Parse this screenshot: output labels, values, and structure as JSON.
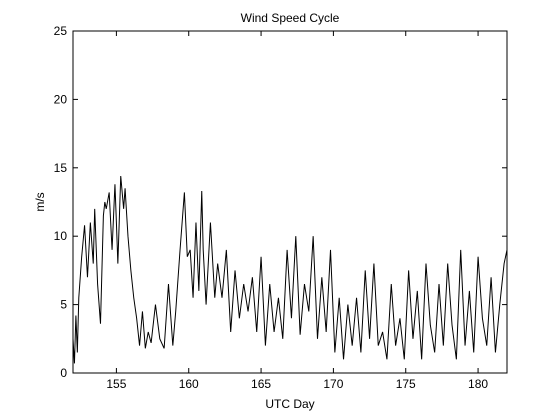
{
  "chart_data": {
    "type": "line",
    "title": "Wind Speed Cycle",
    "xlabel": "UTC Day",
    "ylabel": "m/s",
    "xlim": [
      152,
      182
    ],
    "ylim": [
      0,
      25
    ],
    "x_ticks": [
      155,
      160,
      165,
      170,
      175,
      180
    ],
    "y_ticks": [
      0,
      5,
      10,
      15,
      20,
      25
    ],
    "grid": false,
    "line_color": "#000000",
    "series": [
      {
        "x": [
          152.0,
          152.1,
          152.2,
          152.3,
          152.4,
          152.6,
          152.8,
          153.0,
          153.2,
          153.4,
          153.5,
          153.7,
          153.9,
          154.1,
          154.2,
          154.3,
          154.5,
          154.7,
          154.9,
          155.0,
          155.1,
          155.3,
          155.5,
          155.6,
          155.8,
          156.0,
          156.2,
          156.4,
          156.6,
          156.8,
          157.0,
          157.2,
          157.4,
          157.7,
          158.0,
          158.3,
          158.6,
          158.9,
          159.1,
          159.4,
          159.7,
          159.9,
          160.1,
          160.3,
          160.5,
          160.7,
          160.9,
          161.0,
          161.2,
          161.5,
          161.8,
          162.0,
          162.3,
          162.6,
          162.9,
          163.2,
          163.5,
          163.8,
          164.1,
          164.4,
          164.7,
          165.0,
          165.3,
          165.6,
          165.9,
          166.2,
          166.5,
          166.8,
          167.1,
          167.4,
          167.7,
          168.0,
          168.3,
          168.6,
          168.9,
          169.2,
          169.5,
          169.8,
          170.1,
          170.4,
          170.7,
          171.0,
          171.3,
          171.6,
          171.9,
          172.2,
          172.5,
          172.8,
          173.1,
          173.4,
          173.7,
          174.0,
          174.3,
          174.6,
          174.9,
          175.2,
          175.5,
          175.8,
          176.1,
          176.4,
          176.7,
          177.0,
          177.3,
          177.6,
          177.9,
          178.2,
          178.5,
          178.8,
          179.1,
          179.4,
          179.7,
          180.0,
          180.3,
          180.6,
          180.9,
          181.2,
          181.5,
          181.8,
          182.0
        ],
        "y": [
          2.5,
          0.7,
          4.2,
          1.5,
          5.5,
          8.5,
          10.8,
          7.0,
          11.0,
          8.0,
          12.0,
          6.5,
          3.6,
          11.5,
          12.5,
          12.0,
          13.2,
          9.0,
          13.8,
          11.0,
          8.0,
          14.4,
          12.0,
          13.5,
          10.0,
          7.5,
          5.5,
          4.0,
          2.0,
          4.5,
          1.8,
          3.0,
          2.2,
          5.0,
          2.5,
          1.8,
          6.5,
          2.0,
          4.5,
          9.0,
          13.2,
          8.5,
          9.0,
          5.5,
          11.0,
          6.0,
          13.3,
          9.0,
          5.0,
          11.0,
          5.5,
          8.0,
          5.5,
          9.0,
          3.0,
          7.5,
          4.0,
          6.5,
          4.5,
          7.0,
          3.0,
          8.5,
          2.0,
          6.5,
          3.0,
          5.5,
          2.5,
          9.0,
          4.0,
          10.0,
          2.8,
          6.5,
          4.5,
          10.0,
          2.5,
          7.0,
          3.0,
          9.0,
          1.5,
          5.5,
          1.0,
          5.0,
          2.0,
          5.5,
          1.5,
          7.5,
          2.5,
          8.0,
          2.0,
          3.0,
          1.0,
          6.5,
          2.0,
          4.0,
          1.0,
          7.5,
          2.5,
          6.0,
          1.0,
          8.0,
          3.5,
          1.5,
          6.5,
          2.0,
          8.0,
          3.5,
          1.0,
          9.0,
          2.0,
          6.0,
          1.5,
          8.5,
          4.0,
          2.0,
          7.0,
          1.5,
          5.0,
          8.0,
          9.0
        ]
      }
    ]
  }
}
